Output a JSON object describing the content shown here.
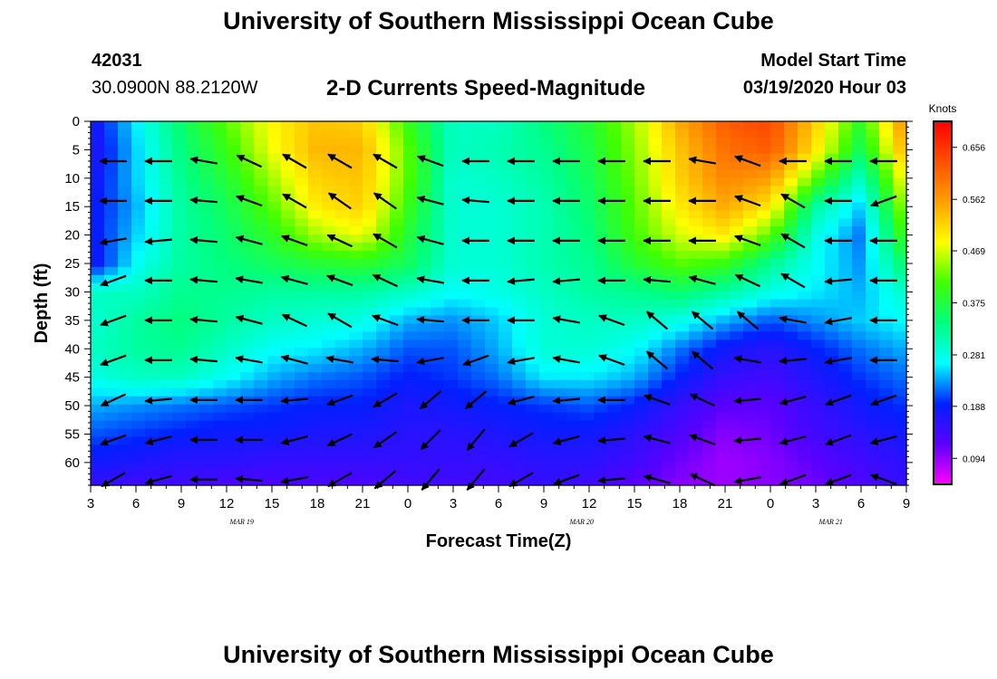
{
  "header": {
    "title": "University of Southern Mississippi Ocean Cube",
    "station_id": "42031",
    "coordinates": "30.0900N 88.2120W",
    "subtitle": "2-D Currents Speed-Magnitude",
    "model_start_label": "Model Start Time",
    "model_start_value": "03/19/2020 Hour 03"
  },
  "footer": {
    "title": "University of Southern Mississippi Ocean Cube"
  },
  "chart_data": {
    "type": "heatmap",
    "title": "2-D Currents Speed-Magnitude",
    "xlabel": "Forecast Time(Z)",
    "ylabel": "Depth (ft)",
    "x_range_hours": [
      0,
      54
    ],
    "x_ticks": [
      "3",
      "6",
      "9",
      "12",
      "15",
      "18",
      "21",
      "0",
      "3",
      "6",
      "9",
      "12",
      "15",
      "18",
      "21",
      "0",
      "3",
      "6",
      "9"
    ],
    "date_labels": [
      {
        "text": "MAR 19",
        "hour": 10
      },
      {
        "text": "MAR 20",
        "hour": 32.5
      },
      {
        "text": "MAR 21",
        "hour": 49
      }
    ],
    "y_range_ft": [
      0,
      64
    ],
    "y_ticks": [
      0,
      5,
      10,
      15,
      20,
      25,
      30,
      35,
      40,
      45,
      50,
      55,
      60
    ],
    "colorbar": {
      "title": "Knots",
      "range": [
        0.047,
        0.703
      ],
      "tick_values": [
        0.094,
        0.188,
        0.281,
        0.375,
        0.469,
        0.562,
        0.656
      ],
      "tick_labels": [
        "0.094",
        "0.188",
        "0.281",
        "0.375",
        "0.469",
        "0.562",
        "0.656"
      ],
      "colors": [
        "#ff00ff",
        "#5a00ff",
        "#0020ff",
        "#00ffff",
        "#00ff80",
        "#40ff00",
        "#ffff00",
        "#ffa000",
        "#ff5000",
        "#ff0000"
      ]
    },
    "speed_grid": {
      "times": [
        0,
        3,
        6,
        9,
        12,
        15,
        18,
        21,
        24,
        27,
        30,
        33,
        36,
        39,
        42,
        45,
        48,
        51,
        54
      ],
      "depths": [
        0,
        5,
        10,
        15,
        20,
        25,
        30,
        35,
        40,
        45,
        50,
        55,
        60,
        64
      ],
      "values": [
        [
          0.17,
          0.26,
          0.35,
          0.42,
          0.49,
          0.53,
          0.52,
          0.4,
          0.3,
          0.3,
          0.34,
          0.38,
          0.45,
          0.55,
          0.62,
          0.64,
          0.52,
          0.39,
          0.58
        ],
        [
          0.16,
          0.25,
          0.34,
          0.4,
          0.48,
          0.54,
          0.54,
          0.42,
          0.3,
          0.31,
          0.33,
          0.37,
          0.44,
          0.53,
          0.6,
          0.62,
          0.5,
          0.36,
          0.55
        ],
        [
          0.17,
          0.25,
          0.33,
          0.38,
          0.45,
          0.52,
          0.53,
          0.42,
          0.29,
          0.3,
          0.32,
          0.36,
          0.43,
          0.52,
          0.58,
          0.56,
          0.42,
          0.3,
          0.5
        ],
        [
          0.18,
          0.24,
          0.32,
          0.36,
          0.42,
          0.5,
          0.52,
          0.4,
          0.29,
          0.29,
          0.31,
          0.35,
          0.42,
          0.5,
          0.55,
          0.5,
          0.32,
          0.25,
          0.46
        ],
        [
          0.18,
          0.25,
          0.32,
          0.35,
          0.39,
          0.45,
          0.48,
          0.38,
          0.29,
          0.29,
          0.31,
          0.34,
          0.41,
          0.47,
          0.5,
          0.42,
          0.28,
          0.22,
          0.42
        ],
        [
          0.17,
          0.27,
          0.32,
          0.34,
          0.36,
          0.38,
          0.39,
          0.36,
          0.29,
          0.29,
          0.31,
          0.33,
          0.38,
          0.42,
          0.4,
          0.33,
          0.27,
          0.23,
          0.36
        ],
        [
          0.3,
          0.3,
          0.33,
          0.33,
          0.32,
          0.32,
          0.32,
          0.3,
          0.27,
          0.28,
          0.3,
          0.32,
          0.33,
          0.35,
          0.32,
          0.28,
          0.26,
          0.24,
          0.3
        ],
        [
          0.29,
          0.32,
          0.34,
          0.32,
          0.3,
          0.29,
          0.28,
          0.24,
          0.23,
          0.25,
          0.29,
          0.3,
          0.3,
          0.28,
          0.24,
          0.21,
          0.23,
          0.25,
          0.27
        ],
        [
          0.3,
          0.32,
          0.33,
          0.3,
          0.27,
          0.26,
          0.24,
          0.21,
          0.21,
          0.24,
          0.29,
          0.29,
          0.27,
          0.22,
          0.18,
          0.16,
          0.19,
          0.22,
          0.24
        ],
        [
          0.28,
          0.3,
          0.3,
          0.27,
          0.24,
          0.22,
          0.21,
          0.19,
          0.2,
          0.22,
          0.26,
          0.26,
          0.24,
          0.19,
          0.15,
          0.14,
          0.17,
          0.2,
          0.22
        ],
        [
          0.24,
          0.23,
          0.22,
          0.21,
          0.2,
          0.19,
          0.19,
          0.17,
          0.18,
          0.19,
          0.2,
          0.21,
          0.19,
          0.15,
          0.12,
          0.12,
          0.15,
          0.18,
          0.2
        ],
        [
          0.21,
          0.2,
          0.19,
          0.18,
          0.18,
          0.17,
          0.17,
          0.16,
          0.16,
          0.17,
          0.18,
          0.18,
          0.16,
          0.13,
          0.1,
          0.11,
          0.14,
          0.16,
          0.18
        ],
        [
          0.18,
          0.17,
          0.16,
          0.16,
          0.15,
          0.15,
          0.15,
          0.15,
          0.15,
          0.15,
          0.16,
          0.16,
          0.14,
          0.11,
          0.09,
          0.1,
          0.12,
          0.14,
          0.16
        ],
        [
          0.15,
          0.14,
          0.14,
          0.13,
          0.13,
          0.13,
          0.13,
          0.14,
          0.14,
          0.14,
          0.15,
          0.14,
          0.12,
          0.1,
          0.09,
          0.1,
          0.11,
          0.13,
          0.15
        ]
      ]
    },
    "vectors": {
      "times": [
        1.5,
        4.5,
        7.5,
        10.5,
        13.5,
        16.5,
        19.5,
        22.5,
        25.5,
        28.5,
        31.5,
        34.5,
        37.5,
        40.5,
        43.5,
        46.5,
        49.5,
        52.5
      ],
      "depths": [
        7,
        14,
        21,
        28,
        35,
        42,
        49,
        56,
        63
      ],
      "directions_deg": [
        [
          180,
          180,
          170,
          155,
          150,
          150,
          150,
          160,
          180,
          180,
          180,
          180,
          180,
          170,
          160,
          180,
          180,
          180
        ],
        [
          180,
          180,
          175,
          160,
          150,
          145,
          145,
          165,
          175,
          180,
          180,
          180,
          180,
          180,
          160,
          150,
          180,
          200
        ],
        [
          190,
          185,
          175,
          165,
          160,
          155,
          150,
          165,
          180,
          180,
          180,
          180,
          180,
          180,
          160,
          150,
          180,
          180
        ],
        [
          200,
          180,
          175,
          170,
          165,
          160,
          155,
          170,
          180,
          185,
          185,
          180,
          175,
          165,
          155,
          150,
          185,
          180
        ],
        [
          200,
          180,
          175,
          165,
          155,
          150,
          160,
          175,
          180,
          180,
          170,
          160,
          140,
          140,
          140,
          170,
          190,
          180
        ],
        [
          200,
          180,
          175,
          170,
          165,
          170,
          175,
          190,
          200,
          190,
          170,
          160,
          140,
          140,
          170,
          185,
          190,
          180
        ],
        [
          205,
          185,
          180,
          180,
          185,
          200,
          210,
          220,
          220,
          195,
          185,
          180,
          160,
          155,
          185,
          195,
          200,
          200
        ],
        [
          200,
          195,
          180,
          180,
          195,
          205,
          215,
          225,
          230,
          210,
          195,
          185,
          165,
          160,
          185,
          195,
          200,
          195
        ],
        [
          210,
          195,
          180,
          175,
          190,
          210,
          220,
          230,
          230,
          210,
          200,
          185,
          165,
          155,
          190,
          200,
          200,
          160
        ]
      ]
    }
  }
}
